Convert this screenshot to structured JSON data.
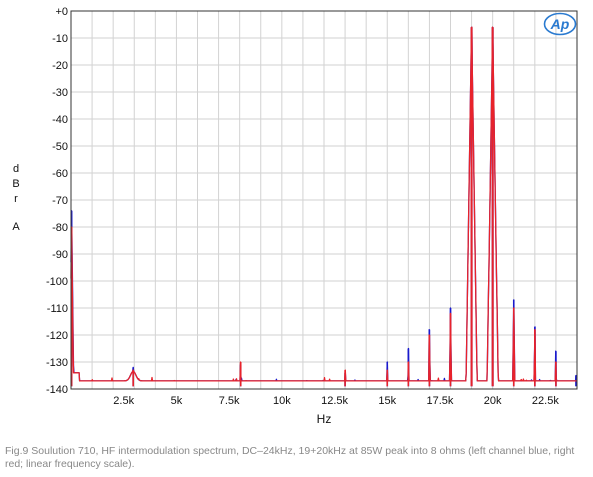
{
  "chart_data": {
    "type": "line",
    "title": "",
    "xlabel": "Hz",
    "ylabel_letters": [
      "d",
      "B",
      "r",
      "",
      "A"
    ],
    "xlim": [
      0,
      24000
    ],
    "ylim": [
      -140,
      0
    ],
    "x_ticks": [
      2500,
      5000,
      7500,
      10000,
      12500,
      15000,
      17500,
      20000,
      22500
    ],
    "x_tick_labels": [
      "2.5k",
      "5k",
      "7.5k",
      "10k",
      "12.5k",
      "15k",
      "17.5k",
      "20k",
      "22.5k"
    ],
    "y_ticks": [
      0,
      -10,
      -20,
      -30,
      -40,
      -50,
      -60,
      -70,
      -80,
      -90,
      -100,
      -110,
      -120,
      -130,
      -140
    ],
    "y_tick_labels": [
      "+0",
      "-10",
      "-20",
      "-30",
      "-40",
      "-50",
      "-60",
      "-70",
      "-80",
      "-90",
      "-100",
      "-110",
      "-120",
      "-130",
      "-140"
    ],
    "grid": true,
    "noise_floor": -139,
    "series": [
      {
        "color": "#1a1acc",
        "peaks": [
          {
            "x": 30,
            "y": -74
          },
          {
            "x": 2950,
            "y": -132
          },
          {
            "x": 8050,
            "y": -131
          },
          {
            "x": 13000,
            "y": -134
          },
          {
            "x": 15000,
            "y": -130
          },
          {
            "x": 16000,
            "y": -125
          },
          {
            "x": 17000,
            "y": -118
          },
          {
            "x": 18000,
            "y": -110
          },
          {
            "x": 19000,
            "y": -6
          },
          {
            "x": 20000,
            "y": -6
          },
          {
            "x": 21000,
            "y": -107
          },
          {
            "x": 22000,
            "y": -117
          },
          {
            "x": 23000,
            "y": -126
          },
          {
            "x": 23950,
            "y": -135
          }
        ]
      },
      {
        "color": "#e8232b",
        "peaks": [
          {
            "x": 30,
            "y": -80
          },
          {
            "x": 2950,
            "y": -133
          },
          {
            "x": 8050,
            "y": -130
          },
          {
            "x": 13000,
            "y": -133
          },
          {
            "x": 15000,
            "y": -133
          },
          {
            "x": 16000,
            "y": -130
          },
          {
            "x": 17000,
            "y": -120
          },
          {
            "x": 18000,
            "y": -112
          },
          {
            "x": 19000,
            "y": -6
          },
          {
            "x": 20000,
            "y": -6
          },
          {
            "x": 21000,
            "y": -110
          },
          {
            "x": 22000,
            "y": -118
          },
          {
            "x": 23000,
            "y": -130
          }
        ]
      }
    ]
  },
  "logo_text": "Ap",
  "caption": "Fig.9 Soulution 710, HF intermodulation spectrum, DC–24kHz, 19+20kHz at 85W peak into 8 ohms (left channel blue, right red; linear frequency scale)."
}
